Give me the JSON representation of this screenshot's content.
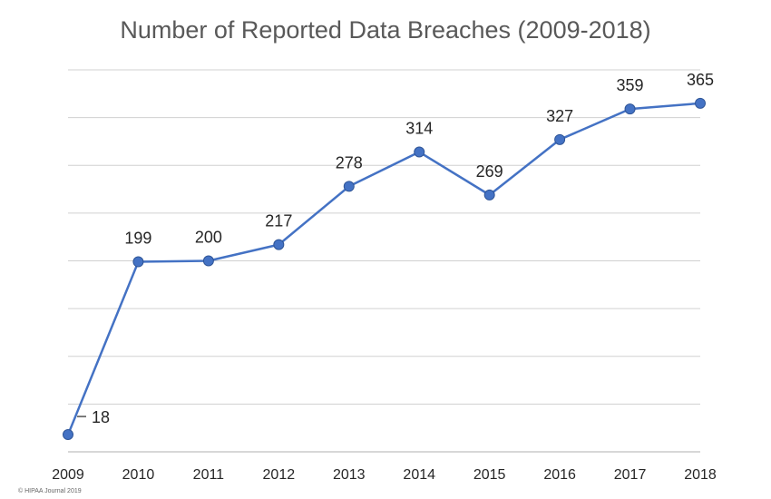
{
  "chart_data": {
    "type": "line",
    "title": "Number of Reported Data Breaches (2009-2018)",
    "categories": [
      "2009",
      "2010",
      "2011",
      "2012",
      "2013",
      "2014",
      "2015",
      "2016",
      "2017",
      "2018"
    ],
    "series": [
      {
        "values": [
          18,
          199,
          200,
          217,
          278,
          314,
          269,
          327,
          359,
          365
        ]
      }
    ],
    "data_labels": [
      "18",
      "199",
      "200",
      "217",
      "278",
      "314",
      "269",
      "327",
      "359",
      "365"
    ],
    "ylim": [
      0,
      400
    ],
    "grid": true,
    "line_color": "#4472c4"
  },
  "credit": "© HIPAA Journal 2019"
}
